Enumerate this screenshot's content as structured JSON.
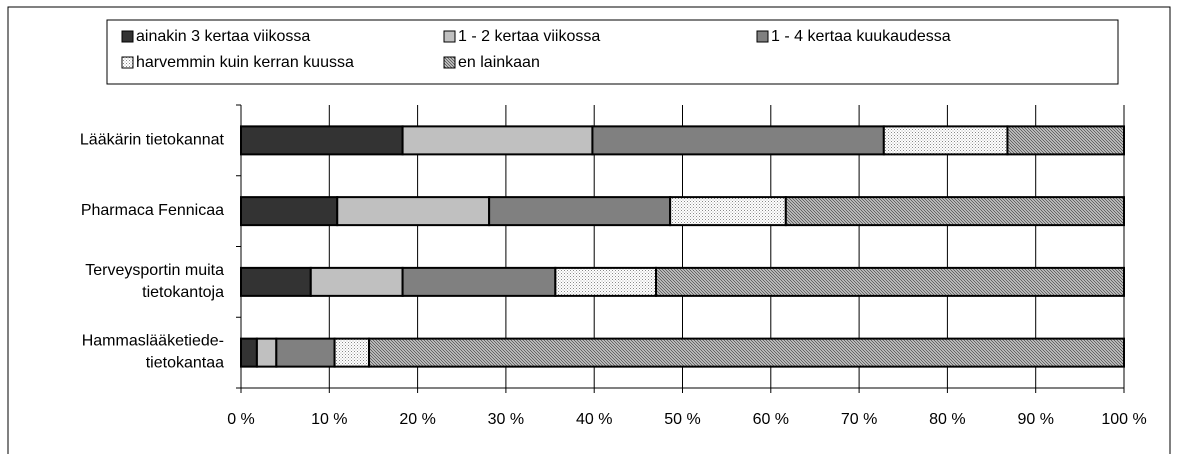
{
  "chart_data": {
    "type": "stacked-barh",
    "categories": [
      "Lääkärin tietokannat",
      "Pharmaca Fennicaa",
      "Terveysportin muita\ntietokantoja",
      "Hammaslääketiede-\ntietokantaa"
    ],
    "series": [
      {
        "name": "ainakin 3 kertaa viikossa",
        "color": "#333333",
        "values": [
          18.3,
          10.9,
          7.9,
          1.8
        ]
      },
      {
        "name": "1 - 2 kertaa viikossa",
        "color": "#c0c0c0",
        "values": [
          21.5,
          17.2,
          10.4,
          2.2
        ]
      },
      {
        "name": "1 - 4 kertaa kuukaudessa",
        "color": "#808080",
        "values": [
          33.0,
          20.5,
          17.3,
          6.6
        ]
      },
      {
        "name": "harvemmin kuin kerran kuussa",
        "color": "#c8c8c8",
        "pattern": "dots",
        "values": [
          14.0,
          13.1,
          11.4,
          3.9
        ]
      },
      {
        "name": "en lainkaan",
        "color": "#8c8c8c",
        "pattern": "hatch",
        "values": [
          13.2,
          38.3,
          53.0,
          85.5
        ]
      }
    ],
    "xlim": [
      0,
      100
    ],
    "xticks": [
      {
        "value": 0,
        "label": "0 %"
      },
      {
        "value": 10,
        "label": "10 %"
      },
      {
        "value": 20,
        "label": "20 %"
      },
      {
        "value": 30,
        "label": "30 %"
      },
      {
        "value": 40,
        "label": "40 %"
      },
      {
        "value": 50,
        "label": "50 %"
      },
      {
        "value": 60,
        "label": "60 %"
      },
      {
        "value": 70,
        "label": "70 %"
      },
      {
        "value": 80,
        "label": "80 %"
      },
      {
        "value": 90,
        "label": "90 %"
      },
      {
        "value": 100,
        "label": "100 %"
      }
    ],
    "grid": true,
    "legend": "top"
  }
}
